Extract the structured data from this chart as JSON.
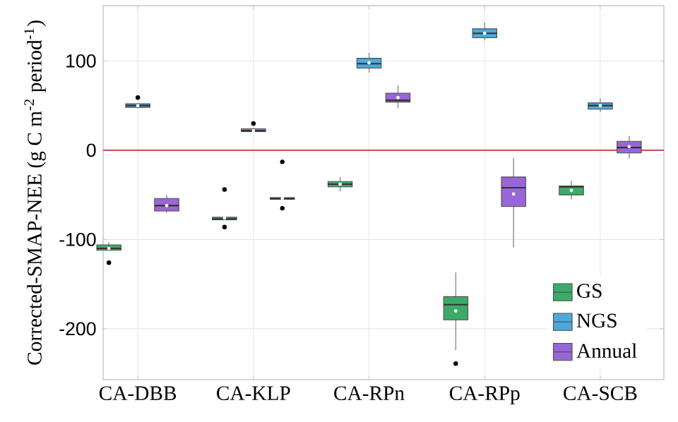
{
  "chart_data": {
    "type": "box",
    "ylabel": "Corrected-SMAP-NEE (g C m$^{-2}$ period$^{-1}$)",
    "categories": [
      "CA-DBB",
      "CA-KLP",
      "CA-RPn",
      "CA-RPp",
      "CA-SCB"
    ],
    "ylim": [
      -257,
      162
    ],
    "yticks": [
      -200,
      -100,
      0,
      100
    ],
    "grid": true,
    "legend": "bottom right",
    "ref_lines": [
      {
        "axis": "y",
        "value": 0,
        "color": "#cc3333"
      }
    ],
    "series": [
      {
        "name": "GS",
        "color": "#3daa6a",
        "boxes": [
          {
            "low": -113,
            "q1": -112,
            "median": -110,
            "q3": -106,
            "high": -103,
            "mean": -110,
            "outliers": [
              -126
            ]
          },
          {
            "low": -78,
            "q1": -78,
            "median": -77,
            "q3": -75,
            "high": -75,
            "mean": -76,
            "outliers": [
              -44,
              -86
            ]
          },
          {
            "low": -46,
            "q1": -41,
            "median": -38,
            "q3": -35,
            "high": -30,
            "mean": -38
          },
          {
            "low": -224,
            "q1": -190,
            "median": -173,
            "q3": -164,
            "high": -137,
            "mean": -180,
            "outliers": [
              -239
            ]
          },
          {
            "low": -55,
            "q1": -50,
            "median": -41,
            "q3": -40,
            "high": -34,
            "mean": -45
          }
        ]
      },
      {
        "name": "NGS",
        "color": "#4fa8dc",
        "boxes": [
          {
            "low": 47,
            "q1": 48,
            "median": 50,
            "q3": 52,
            "high": 53,
            "mean": 50,
            "outliers": [
              59
            ]
          },
          {
            "low": 20,
            "q1": 21,
            "median": 22,
            "q3": 24,
            "high": 25,
            "mean": 22,
            "outliers": [
              30
            ]
          },
          {
            "low": 87,
            "q1": 92,
            "median": 97,
            "q3": 103,
            "high": 109,
            "mean": 98
          },
          {
            "low": 123,
            "q1": 126,
            "median": 131,
            "q3": 136,
            "high": 143,
            "mean": 131
          },
          {
            "low": 43,
            "q1": 46,
            "median": 50,
            "q3": 53,
            "high": 58,
            "mean": 50
          }
        ]
      },
      {
        "name": "Annual",
        "color": "#9966d6",
        "boxes": [
          {
            "low": -70,
            "q1": -68,
            "median": -62,
            "q3": -54,
            "high": -50,
            "mean": -62
          },
          {
            "low": -55,
            "q1": -55,
            "median": -54,
            "q3": -53,
            "high": -53,
            "mean": -54,
            "outliers": [
              -13,
              -65
            ]
          },
          {
            "low": 47,
            "q1": 54,
            "median": 56,
            "q3": 64,
            "high": 73,
            "mean": 59
          },
          {
            "low": -109,
            "q1": -63,
            "median": -42,
            "q3": -30,
            "high": -9,
            "mean": -49
          },
          {
            "low": -9,
            "q1": -3,
            "median": 3,
            "q3": 10,
            "high": 16,
            "mean": 4
          }
        ]
      }
    ]
  }
}
